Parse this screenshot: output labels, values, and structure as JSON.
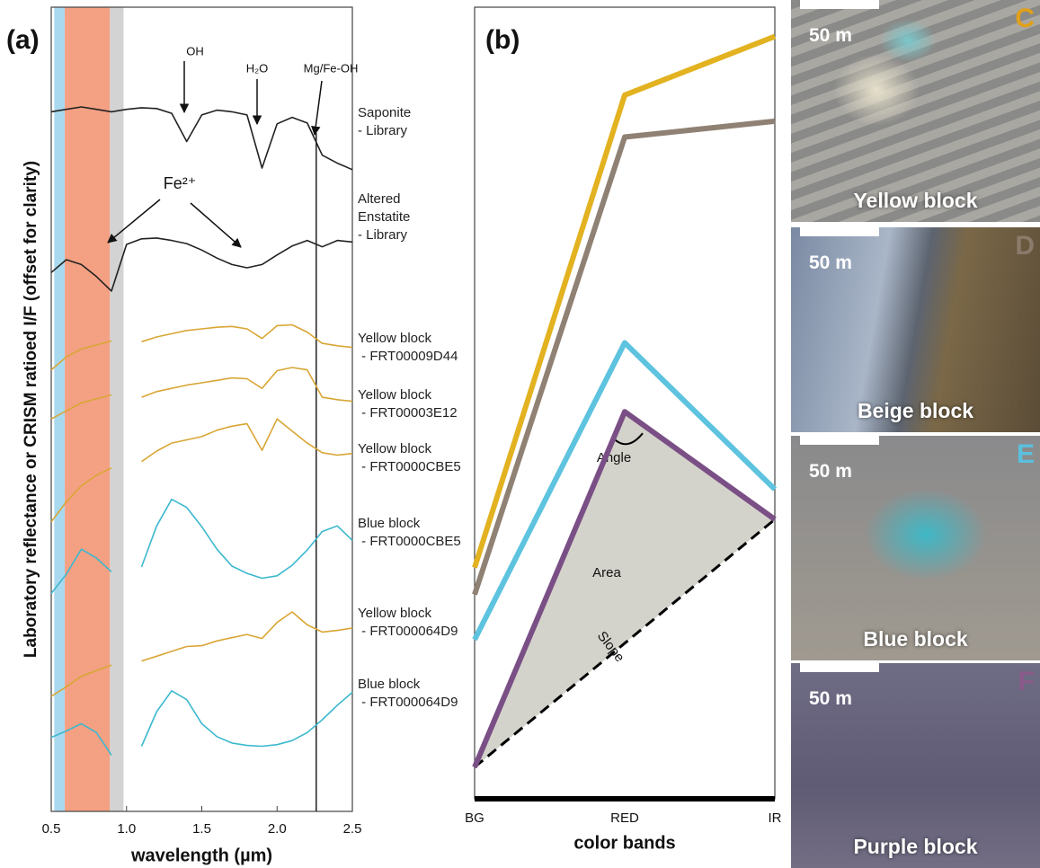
{
  "chart_data": [
    {
      "type": "line",
      "panel": "(a)",
      "y_label": "Laboratory reflectance or CRISM ratioed I/F (offset for clarity)",
      "x_label": "wavelength (µm)",
      "xlim": [
        0.5,
        2.5
      ],
      "ylim": [
        0,
        100
      ],
      "xticks": [
        0.5,
        {
          "value": 1,
          "label": "1.0"
        },
        1.5,
        {
          "value": 2,
          "label": "2.0"
        },
        2.5
      ],
      "x": [
        0.5,
        0.6,
        0.7,
        0.8,
        0.9,
        1.0,
        1.1,
        1.2,
        1.3,
        1.4,
        1.5,
        1.6,
        1.7,
        1.8,
        1.9,
        2.0,
        2.1,
        2.2,
        2.3,
        2.4,
        2.5
      ],
      "bands": [
        {
          "from": 0.52,
          "to": 0.59,
          "color": "#a9d9ee"
        },
        {
          "from": 0.59,
          "to": 0.89,
          "color": "#f4a083"
        },
        {
          "from": 0.89,
          "to": 0.98,
          "color": "#d3d3d3"
        }
      ],
      "vline": 2.26,
      "annotations": [
        "OH",
        "H₂O",
        "Mg/Fe-OH",
        "Fe²⁺"
      ],
      "series": [
        {
          "name": "Saponite\n- Library",
          "color": "#222222",
          "values": [
            87.0,
            87.3,
            87.6,
            87.3,
            87.0,
            87.3,
            87.5,
            87.4,
            86.8,
            83.3,
            86.6,
            87.2,
            87.0,
            86.6,
            80.0,
            85.5,
            86.3,
            85.6,
            81.6,
            80.6,
            79.8
          ]
        },
        {
          "name": "Altered\nEnstatite\n- Library",
          "color": "#222222",
          "values": [
            67.0,
            68.6,
            68.0,
            66.5,
            64.7,
            70.5,
            71.2,
            71.3,
            71.0,
            70.6,
            69.8,
            68.8,
            68.0,
            67.6,
            68.0,
            69.2,
            70.3,
            71.0,
            70.2,
            71.0,
            70.8
          ]
        },
        {
          "name": "Yellow block\n - FRT00009D44",
          "color": "#d9a635",
          "values": [
            54.9,
            56.5,
            57.5,
            58.0,
            58.5,
            null,
            58.4,
            59.0,
            59.4,
            59.8,
            60.0,
            60.2,
            60.3,
            60.0,
            58.8,
            60.4,
            60.5,
            59.6,
            58.2,
            57.9,
            57.7
          ]
        },
        {
          "name": "Yellow block\n - FRT00003E12",
          "color": "#d9a635",
          "values": [
            48.8,
            49.8,
            50.8,
            51.3,
            51.8,
            null,
            51.5,
            52.2,
            52.6,
            53.0,
            53.3,
            53.6,
            53.9,
            53.8,
            52.6,
            54.8,
            55.2,
            54.9,
            51.5,
            51.2,
            51.0
          ]
        },
        {
          "name": "Yellow block\n - FRT0000CBE5",
          "color": "#d9a635",
          "values": [
            36.0,
            38.5,
            40.5,
            41.8,
            42.7,
            null,
            43.5,
            44.8,
            45.8,
            46.2,
            46.6,
            47.4,
            47.9,
            48.2,
            44.9,
            48.8,
            47.3,
            45.8,
            44.6,
            44.3,
            44.5
          ]
        },
        {
          "name": "Blue block\n - FRT0000CBE5",
          "color": "#3cb8cf",
          "values": [
            27.1,
            29.5,
            32.6,
            31.5,
            29.8,
            null,
            30.4,
            35.5,
            38.8,
            37.8,
            35.4,
            32.6,
            30.5,
            29.6,
            29.0,
            29.3,
            30.6,
            32.5,
            34.8,
            35.5,
            33.7
          ]
        },
        {
          "name": "Yellow block\n - FRT000064D9",
          "color": "#d9a635",
          "values": [
            14.3,
            15.5,
            16.8,
            17.5,
            18.2,
            null,
            18.7,
            19.3,
            19.9,
            20.5,
            20.6,
            21.2,
            21.6,
            22.0,
            21.5,
            23.5,
            24.8,
            23.2,
            22.3,
            22.5,
            22.8
          ]
        },
        {
          "name": "Blue block\n - FRT000064D9",
          "color": "#3cb8cf",
          "values": [
            9.2,
            10.0,
            10.9,
            9.8,
            7.0,
            null,
            8.1,
            12.4,
            15.0,
            13.9,
            10.9,
            9.3,
            8.5,
            8.2,
            8.1,
            8.3,
            8.8,
            9.8,
            11.4,
            13.2,
            14.8
          ]
        }
      ]
    },
    {
      "type": "line",
      "panel": "(b)",
      "x_label": "color bands",
      "categories": [
        "BG",
        "RED",
        "IR"
      ],
      "ylim": [
        0,
        100
      ],
      "annotations": [
        "Angle",
        "Area",
        "Slope"
      ],
      "series": [
        {
          "color": "#e2b220",
          "values": [
            29.2,
            88.9,
            96.3
          ]
        },
        {
          "color": "#8f8173",
          "values": [
            25.8,
            83.6,
            85.6
          ]
        },
        {
          "color": "#5ec3df",
          "values": [
            20.1,
            57.6,
            39.1
          ]
        },
        {
          "color": "#7a4f86",
          "values": [
            4.0,
            48.9,
            35.3
          ]
        }
      ]
    }
  ],
  "images": [
    {
      "letter": "C",
      "letter_color": "#e0a01a",
      "scale": "50 m",
      "caption": "Yellow block"
    },
    {
      "letter": "D",
      "letter_color": "#8a7b6a",
      "scale": "50 m",
      "caption": "Beige block"
    },
    {
      "letter": "E",
      "letter_color": "#5bc0de",
      "scale": "50 m",
      "caption": "Blue block"
    },
    {
      "letter": "F",
      "letter_color": "#8a5a8a",
      "scale": "50 m",
      "caption": "Purple block"
    }
  ]
}
